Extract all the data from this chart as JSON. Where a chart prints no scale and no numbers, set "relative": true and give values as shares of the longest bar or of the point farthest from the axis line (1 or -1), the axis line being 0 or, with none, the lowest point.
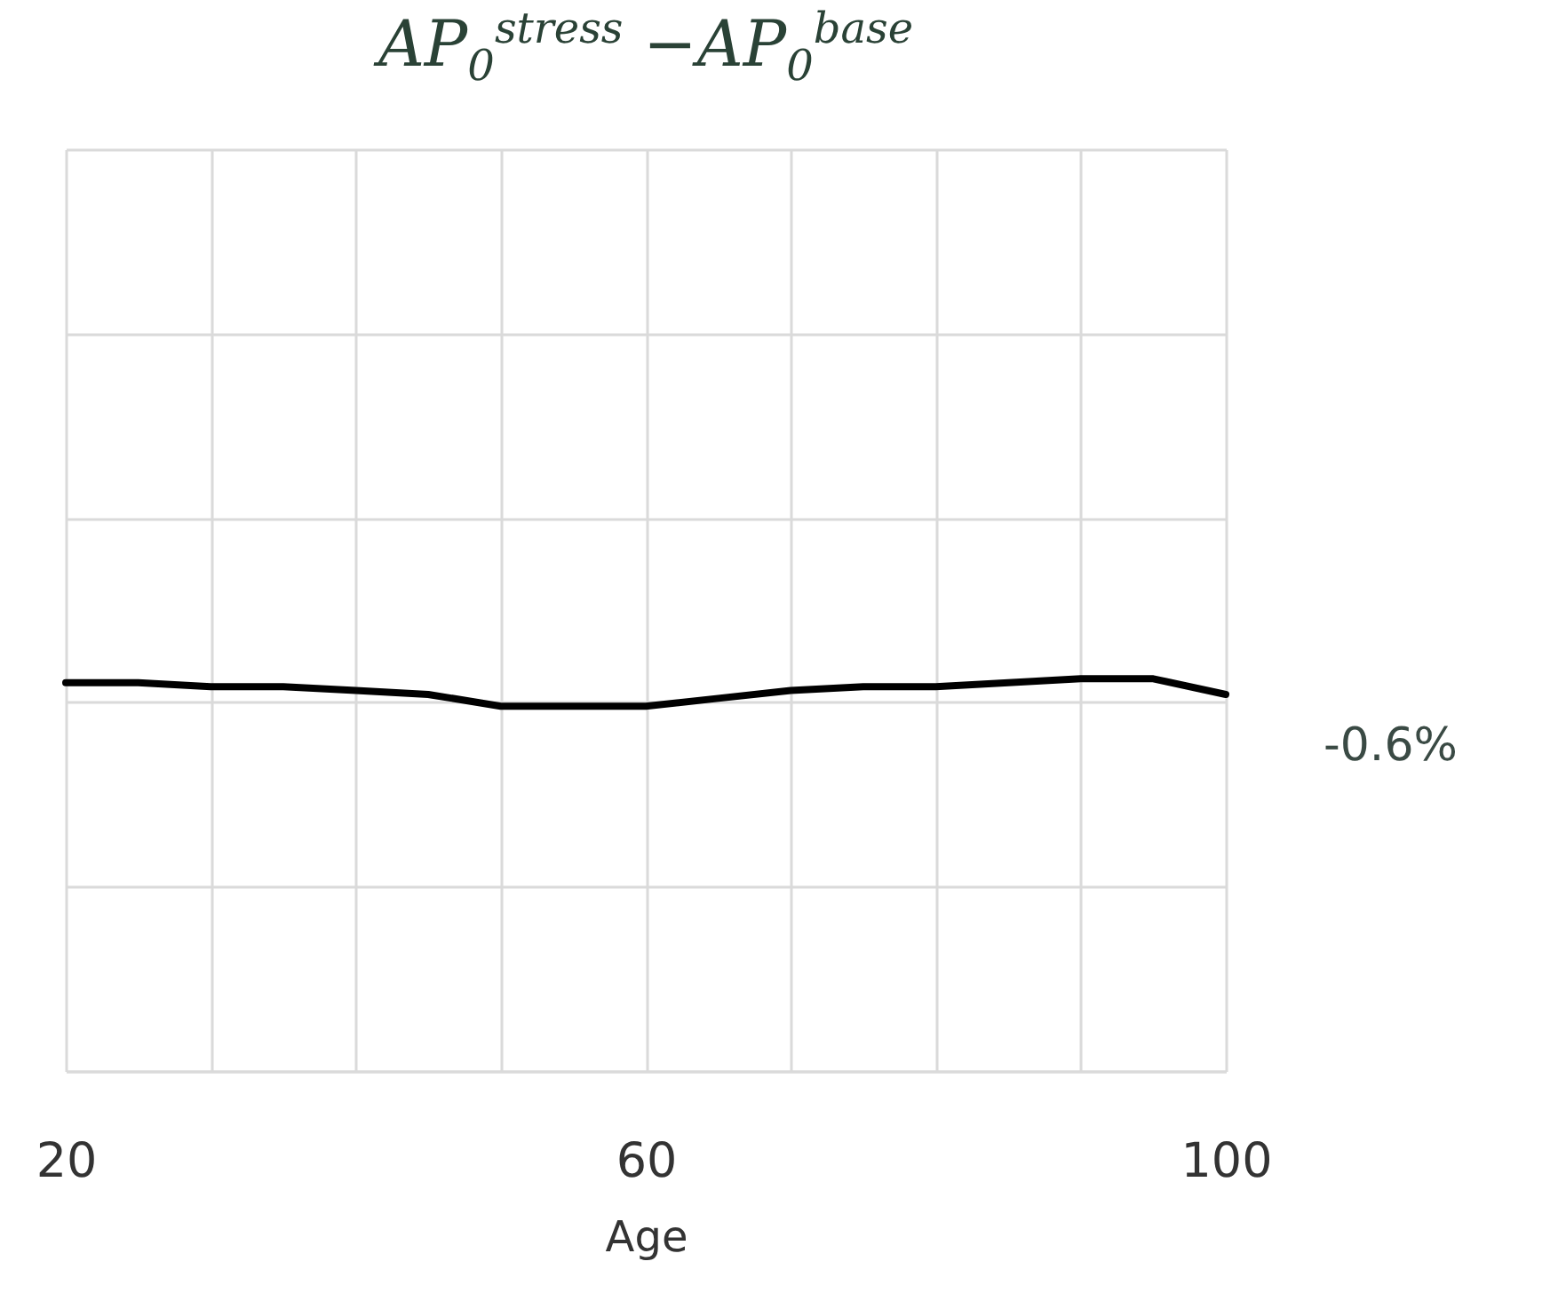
{
  "chart_data": {
    "type": "line",
    "title": "AP$_{0}$$^{stress}$ −AP$_{0}$$^{base}$",
    "xlabel": "Age",
    "relative": true,
    "grid": true,
    "x": [
      20,
      25,
      30,
      35,
      40,
      45,
      50,
      55,
      60,
      65,
      70,
      75,
      80,
      85,
      90,
      95,
      100
    ],
    "xlim": [
      20,
      100
    ],
    "xticks": [
      20,
      {
        "value": 30,
        "label": null
      },
      {
        "value": 40,
        "label": null
      },
      {
        "value": 50,
        "label": null
      },
      60,
      {
        "value": 70,
        "label": null
      },
      {
        "value": 80,
        "label": null
      },
      {
        "value": 90,
        "label": null
      },
      100
    ],
    "series": [
      {
        "color": "#000000",
        "values": [
          0.99,
          0.99,
          0.98,
          0.98,
          0.97,
          0.96,
          0.93,
          0.93,
          0.93,
          0.95,
          0.97,
          0.98,
          0.98,
          0.99,
          1,
          1,
          0.96
        ]
      }
    ],
    "annotations": [
      "-0.6%"
    ]
  }
}
